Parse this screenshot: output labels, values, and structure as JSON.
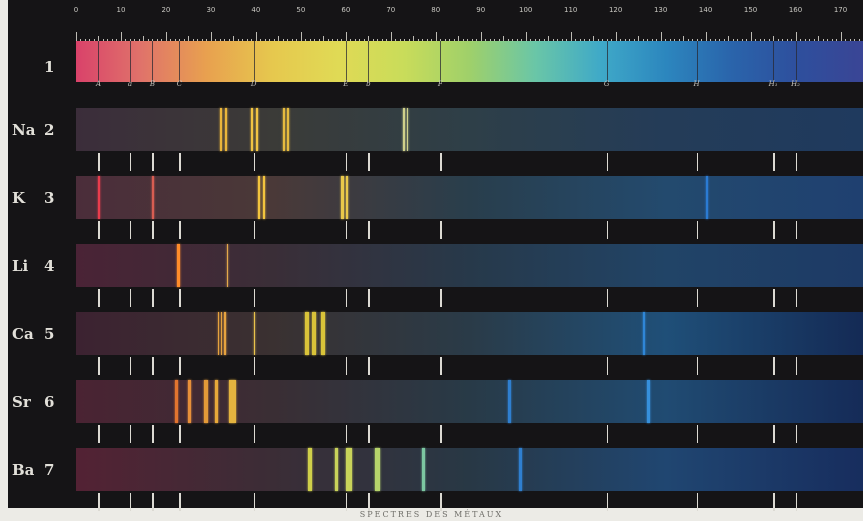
{
  "scale": {
    "labels": [
      "0",
      "10",
      "20",
      "30",
      "40",
      "50",
      "60",
      "70",
      "80",
      "90",
      "100",
      "110",
      "120",
      "130",
      "140",
      "150",
      "160",
      "170"
    ]
  },
  "fraunhofer_lines": [
    {
      "label": "A",
      "pos": 5
    },
    {
      "label": "a",
      "pos": 12
    },
    {
      "label": "B",
      "pos": 17
    },
    {
      "label": "C",
      "pos": 23
    },
    {
      "label": "D",
      "pos": 39.5
    },
    {
      "label": "E",
      "pos": 60
    },
    {
      "label": "b",
      "pos": 65
    },
    {
      "label": "F",
      "pos": 81
    },
    {
      "label": "G",
      "pos": 118
    },
    {
      "label": "H",
      "pos": 138
    },
    {
      "label": "H₁",
      "pos": 155
    },
    {
      "label": "H₂",
      "pos": 160
    }
  ],
  "solar_spectrum": {
    "number": "1",
    "gradient": [
      "#d9426a",
      "#e0736a",
      "#e8a14f",
      "#e6c84e",
      "#e0da55",
      "#c9dc5a",
      "#9fd06a",
      "#6ac6a7",
      "#3fa9c8",
      "#2c86be",
      "#2a64ab",
      "#2e4f9d",
      "#3a4595"
    ]
  },
  "rows": [
    {
      "element": "Na",
      "number": "2",
      "bg": [
        "#3b2d3a",
        "#3b3b38",
        "#2e3f48",
        "#243c58",
        "#1f3a5e"
      ],
      "lines": [
        {
          "pos": 32,
          "color": "#e9b53b",
          "w": 2
        },
        {
          "pos": 33.2,
          "color": "#e9b53b",
          "w": 2
        },
        {
          "pos": 39,
          "color": "#f1c443",
          "w": 2
        },
        {
          "pos": 40,
          "color": "#f1c443",
          "w": 2
        },
        {
          "pos": 46,
          "color": "#e5bb3f",
          "w": 2
        },
        {
          "pos": 47,
          "color": "#e5bb3f",
          "w": 2
        },
        {
          "pos": 72.8,
          "color": "#d0d08a",
          "w": 1.5
        },
        {
          "pos": 73.6,
          "color": "#d0d08a",
          "w": 1.5
        }
      ]
    },
    {
      "element": "K",
      "number": "3",
      "bg": [
        "#4b2d3a",
        "#4a3938",
        "#293e4c",
        "#234a6e",
        "#1f4070"
      ],
      "lines": [
        {
          "pos": 5,
          "color": "#e83d4d",
          "w": 2
        },
        {
          "pos": 17,
          "color": "#d85d52",
          "w": 1.5
        },
        {
          "pos": 40.5,
          "color": "#f2c43e",
          "w": 2
        },
        {
          "pos": 41.5,
          "color": "#f2c43e",
          "w": 2
        },
        {
          "pos": 59,
          "color": "#e8c84a",
          "w": 2.5
        },
        {
          "pos": 60,
          "color": "#e8c84a",
          "w": 2.5
        },
        {
          "pos": 140,
          "color": "#2b7bd3",
          "w": 2
        }
      ]
    },
    {
      "element": "Li",
      "number": "4",
      "bg": [
        "#4a2336",
        "#3a2e37",
        "#27394a",
        "#214467",
        "#1d3a66"
      ],
      "lines": [
        {
          "pos": 22.5,
          "color": "#ff8c2a",
          "w": 2.5
        },
        {
          "pos": 33.5,
          "color": "#e4a94b",
          "w": 1.5
        }
      ]
    },
    {
      "element": "Ca",
      "number": "5",
      "bg": [
        "#3c2231",
        "#3a3131",
        "#2a3b48",
        "#1f4f78",
        "#142a55"
      ],
      "lines": [
        {
          "pos": 31.5,
          "color": "#e6a23f",
          "w": 1.5
        },
        {
          "pos": 32.2,
          "color": "#e6a23f",
          "w": 1.5
        },
        {
          "pos": 33,
          "color": "#e6a23f",
          "w": 1.5
        },
        {
          "pos": 39.5,
          "color": "#e8c34c",
          "w": 1.5
        },
        {
          "pos": 51,
          "color": "#d9c339",
          "w": 4
        },
        {
          "pos": 52.5,
          "color": "#d9c339",
          "w": 4
        },
        {
          "pos": 54.5,
          "color": "#d9c339",
          "w": 4
        },
        {
          "pos": 126,
          "color": "#2f86d6",
          "w": 2
        }
      ]
    },
    {
      "element": "Sr",
      "number": "6",
      "bg": [
        "#4a2333",
        "#3a2e34",
        "#283a47",
        "#204b72",
        "#152b58"
      ],
      "lines": [
        {
          "pos": 22,
          "color": "#e2742f",
          "w": 3
        },
        {
          "pos": 25,
          "color": "#e7903a",
          "w": 3
        },
        {
          "pos": 28.5,
          "color": "#e49a38",
          "w": 4
        },
        {
          "pos": 31,
          "color": "#e7a93a",
          "w": 3
        },
        {
          "pos": 34,
          "color": "#e4b33f",
          "w": 7
        },
        {
          "pos": 96,
          "color": "#2f7fcf",
          "w": 3
        },
        {
          "pos": 127,
          "color": "#3690dc",
          "w": 3
        }
      ]
    },
    {
      "element": "Ba",
      "number": "7",
      "bg": [
        "#532234",
        "#3b2d36",
        "#283845",
        "#204671",
        "#172d5e"
      ],
      "lines": [
        {
          "pos": 51.5,
          "color": "#cfcf4a",
          "w": 4
        },
        {
          "pos": 57.5,
          "color": "#c9d35a",
          "w": 3
        },
        {
          "pos": 60,
          "color": "#c9d35a",
          "w": 4
        },
        {
          "pos": 61,
          "color": "#c9d35a",
          "w": 2
        },
        {
          "pos": 66.5,
          "color": "#b6d46b",
          "w": 5
        },
        {
          "pos": 77,
          "color": "#7cc7a1",
          "w": 3
        },
        {
          "pos": 98.5,
          "color": "#2f7fcf",
          "w": 3
        }
      ]
    }
  ],
  "caption": "SPECTRES DES MÉTAUX"
}
